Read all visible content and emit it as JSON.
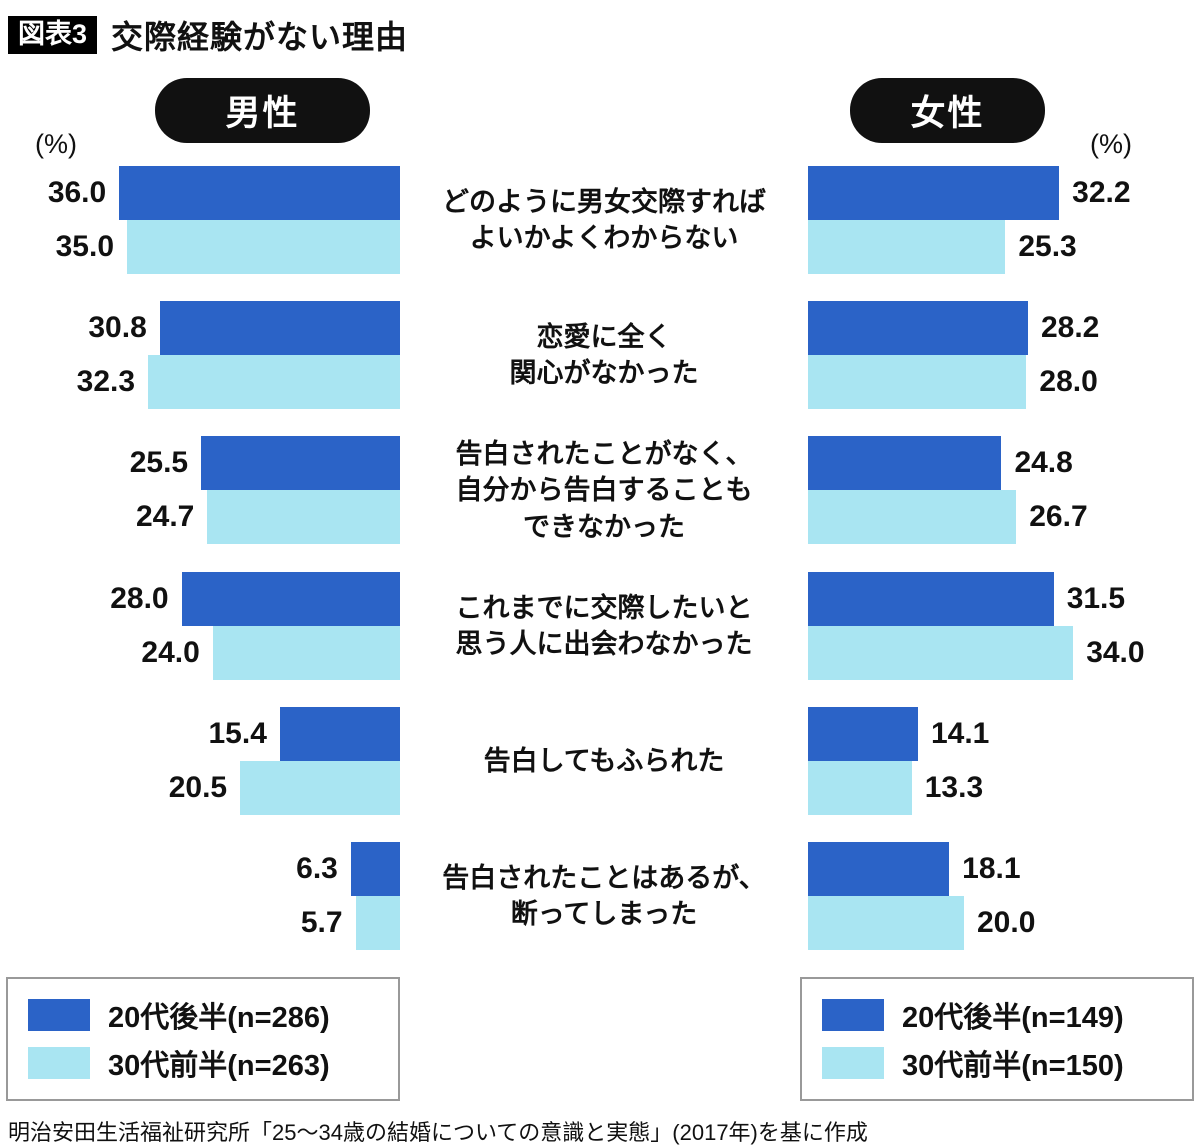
{
  "header": {
    "badge": "図表3",
    "title": "交際経験がない理由"
  },
  "groups": {
    "men": "男性",
    "women": "女性"
  },
  "percent_label": "(%)",
  "colors": {
    "dark": "#2b63c7",
    "light": "#a9e5f2"
  },
  "legend": {
    "men": {
      "item1": "20代後半(n=286)",
      "item2": "30代前半(n=263)"
    },
    "women": {
      "item1": "20代後半(n=149)",
      "item2": "30代前半(n=150)"
    }
  },
  "source": "明治安田生活福祉研究所「25〜34歳の結婚についての意識と実態」(2017年)を基に作成",
  "chart_data": {
    "type": "bar",
    "layout": "butterfly",
    "title": "交際経験がない理由",
    "unit": "%",
    "xlim": [
      0,
      36
    ],
    "categories": [
      "どのように男女交際すればよいかよくわからない",
      "恋愛に全く関心がなかった",
      "告白されたことがなく、自分から告白することもできなかった",
      "これまでに交際したいと思う人に出会わなかった",
      "告白してもふられた",
      "告白されたことはあるが、断ってしまった"
    ],
    "series": [
      {
        "group": "男性",
        "name": "20代後半",
        "n": 286,
        "values": [
          36.0,
          30.8,
          25.5,
          28.0,
          15.4,
          6.3
        ]
      },
      {
        "group": "男性",
        "name": "30代前半",
        "n": 263,
        "values": [
          35.0,
          32.3,
          24.7,
          24.0,
          20.5,
          5.7
        ]
      },
      {
        "group": "女性",
        "name": "20代後半",
        "n": 149,
        "values": [
          32.2,
          28.2,
          24.8,
          31.5,
          14.1,
          18.1
        ]
      },
      {
        "group": "女性",
        "name": "30代前半",
        "n": 150,
        "values": [
          25.3,
          28.0,
          26.7,
          34.0,
          13.3,
          20.0
        ]
      }
    ],
    "legend_position": "bottom"
  },
  "rows": [
    {
      "label": "どのように男女交際すれば\nよいかよくわからない",
      "men": {
        "v1": "36.0",
        "v2": "35.0"
      },
      "women": {
        "v1": "32.2",
        "v2": "25.3"
      }
    },
    {
      "label": "恋愛に全く\n関心がなかった",
      "men": {
        "v1": "30.8",
        "v2": "32.3"
      },
      "women": {
        "v1": "28.2",
        "v2": "28.0"
      }
    },
    {
      "label": "告白されたことがなく、\n自分から告白することも\nできなかった",
      "men": {
        "v1": "25.5",
        "v2": "24.7"
      },
      "women": {
        "v1": "24.8",
        "v2": "26.7"
      }
    },
    {
      "label": "これまでに交際したいと\n思う人に出会わなかった",
      "men": {
        "v1": "28.0",
        "v2": "24.0"
      },
      "women": {
        "v1": "31.5",
        "v2": "34.0"
      }
    },
    {
      "label": "告白してもふられた",
      "men": {
        "v1": "15.4",
        "v2": "20.5"
      },
      "women": {
        "v1": "14.1",
        "v2": "13.3"
      }
    },
    {
      "label": "告白されたことはあるが、\n断ってしまった",
      "men": {
        "v1": "6.3",
        "v2": "5.7"
      },
      "women": {
        "v1": "18.1",
        "v2": "20.0"
      }
    }
  ]
}
